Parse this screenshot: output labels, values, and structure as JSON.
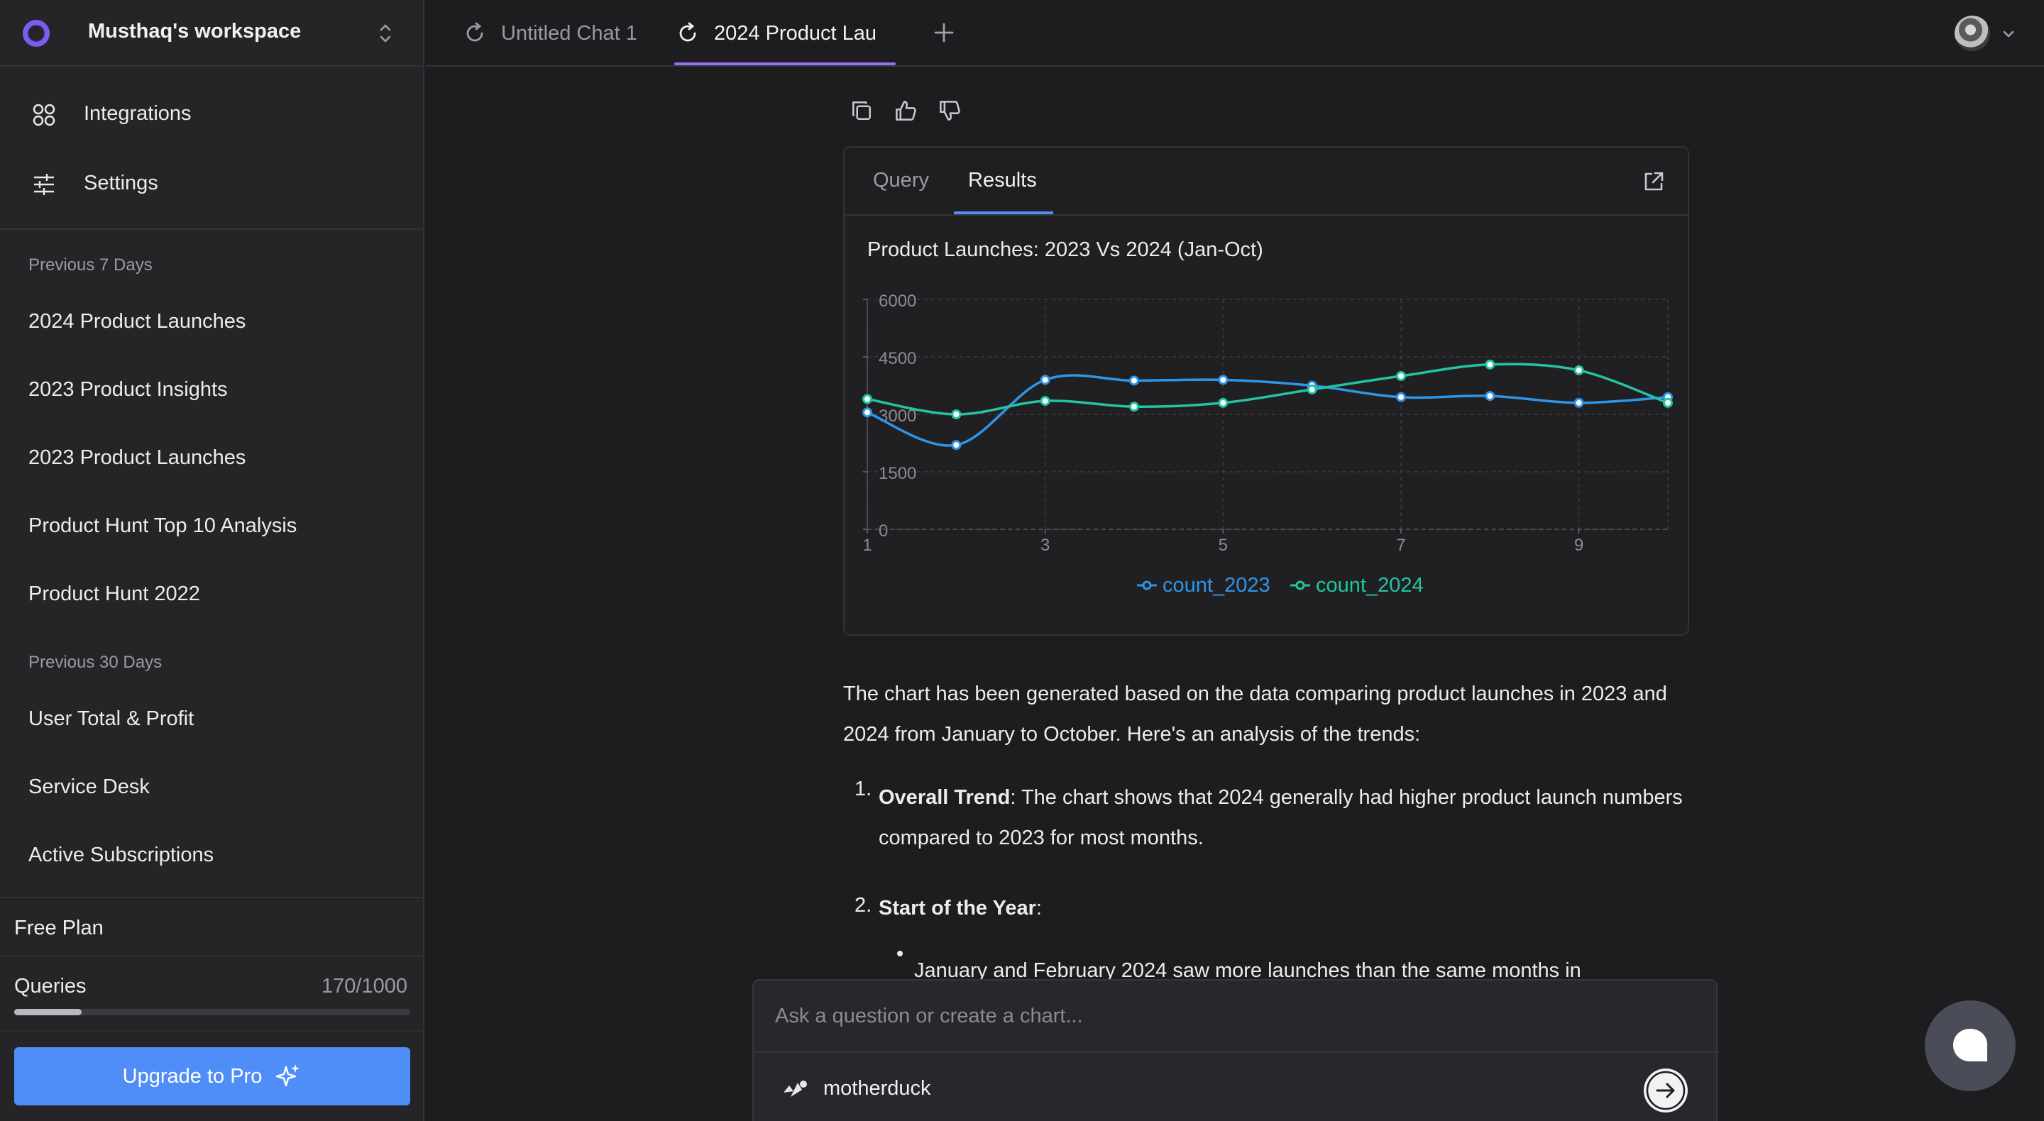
{
  "workspace": {
    "name": "Musthaq's workspace"
  },
  "nav": [
    {
      "label": "Integrations",
      "icon": "integrations-icon"
    },
    {
      "label": "Settings",
      "icon": "settings-sliders-icon"
    }
  ],
  "history": {
    "recent_label": "Previous 7 Days",
    "recent": [
      "2024 Product Launches",
      "2023 Product Insights",
      "2023 Product Launches",
      "Product Hunt Top 10 Analysis",
      "Product Hunt 2022"
    ],
    "older_label": "Previous 30 Days",
    "older": [
      "User Total & Profit",
      "Service Desk",
      "Active Subscriptions"
    ]
  },
  "plan": {
    "name": "Free Plan",
    "queries_label": "Queries",
    "queries_count": "170/1000",
    "queries_fraction": 0.17,
    "upgrade_label": "Upgrade to Pro"
  },
  "tabs": [
    {
      "label": "Untitled Chat 1",
      "active": false
    },
    {
      "label": "2024 Product Lau",
      "active": true
    }
  ],
  "result_card": {
    "tabs": {
      "query": "Query",
      "results": "Results"
    }
  },
  "chart_data": {
    "type": "line",
    "title": "Product Launches: 2023 Vs 2024 (Jan-Oct)",
    "x": [
      1,
      2,
      3,
      4,
      5,
      6,
      7,
      8,
      9,
      10
    ],
    "x_ticks": [
      "1",
      "3",
      "5",
      "7",
      "9"
    ],
    "y_ticks": [
      "0",
      "1500",
      "3000",
      "4500",
      "6000"
    ],
    "ylim": [
      0,
      6000
    ],
    "series": [
      {
        "name": "count_2023",
        "color": "#2f95e8",
        "values": [
          3050,
          2200,
          3900,
          3880,
          3900,
          3750,
          3450,
          3480,
          3300,
          3450
        ]
      },
      {
        "name": "count_2024",
        "color": "#22c4a2",
        "values": [
          3400,
          3000,
          3350,
          3200,
          3300,
          3650,
          4000,
          4300,
          4150,
          3300
        ]
      }
    ],
    "grid": true,
    "legend_position": "bottom-center"
  },
  "answer": {
    "intro": "The chart has been generated based on the data comparing product launches in 2023 and 2024 from January to October. Here's an analysis of the trends:",
    "items": [
      {
        "num": "1.",
        "title": "Overall Trend",
        "text": ": The chart shows that 2024 generally had higher product launch numbers compared to 2023 for most months."
      },
      {
        "num": "2.",
        "title": "Start of the Year",
        "text": ":"
      }
    ],
    "bullet": "January and February 2024 saw more launches than the same months in"
  },
  "composer": {
    "placeholder": "Ask a question or create a chart...",
    "source": "motherduck"
  }
}
